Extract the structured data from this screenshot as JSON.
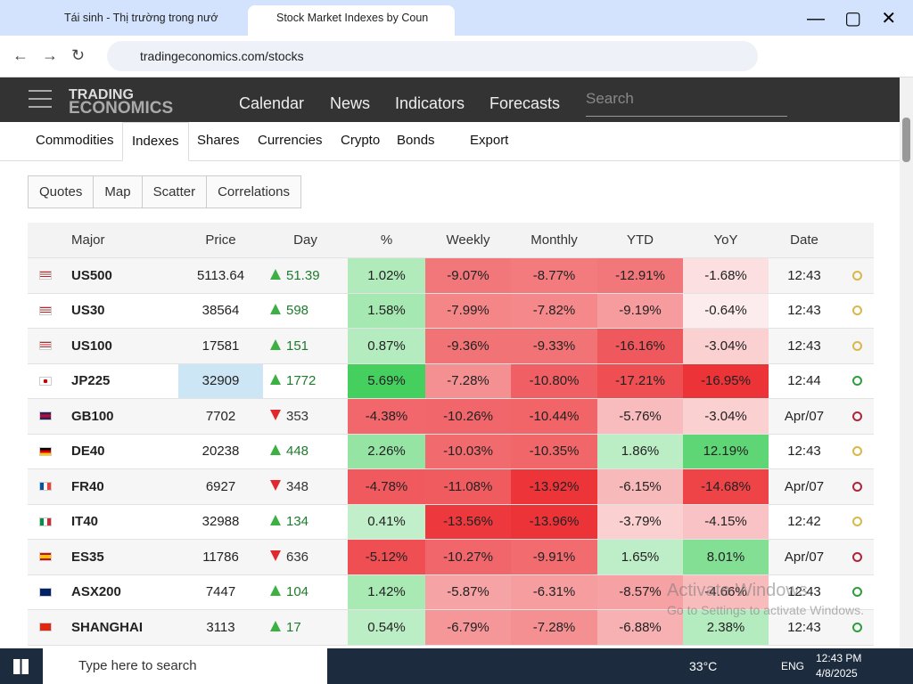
{
  "browser": {
    "tabs": [
      "Tái sinh - Thị trường trong nướ",
      "Stock Market Indexes by Count"
    ],
    "url": "tradingeconomics.com/stocks"
  },
  "site": {
    "logo": [
      "TRADING",
      "ECONOMICS"
    ],
    "nav": [
      "Calendar",
      "News",
      "Indicators",
      "Forecasts"
    ],
    "search": "Search",
    "subnav": [
      "Commodities",
      "Indexes",
      "Shares",
      "Currencies",
      "Crypto",
      "Bonds",
      "Export"
    ],
    "views": [
      "Quotes",
      "Map",
      "Scatter",
      "Correlations"
    ]
  },
  "table": {
    "headers": [
      "Major",
      "Price",
      "Day",
      "%",
      "Weekly",
      "Monthly",
      "YTD",
      "YoY",
      "Date"
    ],
    "rows": [
      {
        "name": "US500",
        "price": "5113.64",
        "trend": "up",
        "day": "51.39",
        "pct": "1.02%",
        "weekly": "-9.07%",
        "monthly": "-8.77%",
        "ytd": "-12.91%",
        "yoy": "-1.68%",
        "date": "12:43",
        "clock": "#d9b84a"
      },
      {
        "name": "US30",
        "price": "38564",
        "trend": "up",
        "day": "598",
        "pct": "1.58%",
        "weekly": "-7.99%",
        "monthly": "-7.82%",
        "ytd": "-9.19%",
        "yoy": "-0.64%",
        "date": "12:43",
        "clock": "#d9b84a"
      },
      {
        "name": "US100",
        "price": "17581",
        "trend": "up",
        "day": "151",
        "pct": "0.87%",
        "weekly": "-9.36%",
        "monthly": "-9.33%",
        "ytd": "-16.16%",
        "yoy": "-3.04%",
        "date": "12:43",
        "clock": "#d9b84a"
      },
      {
        "name": "JP225",
        "price": "32909",
        "trend": "up",
        "day": "1772",
        "pct": "5.69%",
        "weekly": "-7.28%",
        "monthly": "-10.80%",
        "ytd": "-17.21%",
        "yoy": "-16.95%",
        "date": "12:44",
        "clock": "#2e9e3e"
      },
      {
        "name": "GB100",
        "price": "7702",
        "trend": "down",
        "day": "353",
        "pct": "-4.38%",
        "weekly": "-10.26%",
        "monthly": "-10.44%",
        "ytd": "-5.76%",
        "yoy": "-3.04%",
        "date": "Apr/07",
        "clock": "#b0243a"
      },
      {
        "name": "DE40",
        "price": "20238",
        "trend": "up",
        "day": "448",
        "pct": "2.26%",
        "weekly": "-10.03%",
        "monthly": "-10.35%",
        "ytd": "1.86%",
        "yoy": "12.19%",
        "date": "12:43",
        "clock": "#d9b84a"
      },
      {
        "name": "FR40",
        "price": "6927",
        "trend": "down",
        "day": "348",
        "pct": "-4.78%",
        "weekly": "-11.08%",
        "monthly": "-13.92%",
        "ytd": "-6.15%",
        "yoy": "-14.68%",
        "date": "Apr/07",
        "clock": "#b0243a"
      },
      {
        "name": "IT40",
        "price": "32988",
        "trend": "up",
        "day": "134",
        "pct": "0.41%",
        "weekly": "-13.56%",
        "monthly": "-13.96%",
        "ytd": "-3.79%",
        "yoy": "-4.15%",
        "date": "12:42",
        "clock": "#d9b84a"
      },
      {
        "name": "ES35",
        "price": "11786",
        "trend": "down",
        "day": "636",
        "pct": "-5.12%",
        "weekly": "-10.27%",
        "monthly": "-9.91%",
        "ytd": "1.65%",
        "yoy": "8.01%",
        "date": "Apr/07",
        "clock": "#b0243a"
      },
      {
        "name": "ASX200",
        "price": "7447",
        "trend": "up",
        "day": "104",
        "pct": "1.42%",
        "weekly": "-5.87%",
        "monthly": "-6.31%",
        "ytd": "-8.57%",
        "yoy": "-4.66%",
        "date": "12:43",
        "clock": "#2e9e3e"
      },
      {
        "name": "SHANGHAI",
        "price": "3113",
        "trend": "up",
        "day": "17",
        "pct": "0.54%",
        "weekly": "-6.79%",
        "monthly": "-7.28%",
        "ytd": "-6.88%",
        "yoy": "2.38%",
        "date": "12:43",
        "clock": "#2e9e3e"
      }
    ]
  },
  "watermark": [
    "Activate Windows",
    "Go to Settings to activate Windows."
  ],
  "taskbar": {
    "search": "Type here to search",
    "weather": "33°C",
    "lang": "ENG",
    "time": "12:43 PM",
    "date": "4/8/2025"
  }
}
